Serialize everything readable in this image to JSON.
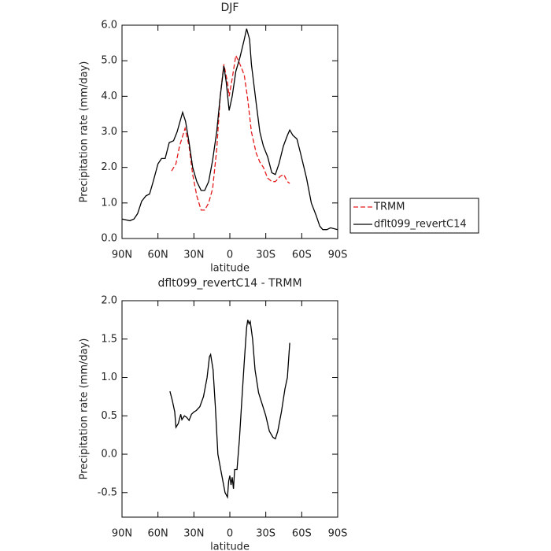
{
  "chart_data": [
    {
      "type": "line",
      "title": "DJF",
      "xlabel": "latitude",
      "ylabel": "Precipitation rate (mm/day)",
      "xlim": [
        90,
        -90
      ],
      "xticks": [
        {
          "value": 90,
          "label": "90N"
        },
        {
          "value": 60,
          "label": "60N"
        },
        {
          "value": 30,
          "label": "30N"
        },
        0,
        {
          "value": -30,
          "label": "30S"
        },
        {
          "value": -60,
          "label": "60S"
        },
        {
          "value": -90,
          "label": "90S"
        }
      ],
      "ylim": [
        0,
        6
      ],
      "yticks": [
        {
          "value": 0,
          "label": "0.0"
        },
        {
          "value": 1,
          "label": "1.0"
        },
        {
          "value": 2,
          "label": "2.0"
        },
        {
          "value": 3,
          "label": "3.0"
        },
        {
          "value": 4,
          "label": "4.0"
        },
        {
          "value": 5,
          "label": "5.0"
        },
        {
          "value": 6,
          "label": "6.0"
        }
      ],
      "legend": "right",
      "series": [
        {
          "name": "TRMM",
          "color": "#e41a1c",
          "dash": true,
          "x": [
            48.6,
            45,
            42,
            37.4,
            34,
            31,
            27.6,
            24,
            21,
            17.7,
            14.4,
            11,
            8,
            5,
            2,
            0.6,
            -2,
            -5,
            -8.5,
            -12,
            -15,
            -18,
            -22,
            -25,
            -28,
            -31.5,
            -35,
            -38,
            -42,
            -45,
            -48,
            -50
          ],
          "values": [
            1.9,
            2.1,
            2.6,
            3.1,
            2.6,
            1.8,
            1.2,
            0.8,
            0.8,
            1.0,
            1.4,
            2.5,
            4.0,
            4.9,
            4.4,
            4.0,
            4.5,
            5.15,
            4.9,
            4.6,
            3.9,
            3.0,
            2.4,
            2.15,
            2.0,
            1.7,
            1.6,
            1.6,
            1.75,
            1.8,
            1.6,
            1.55
          ]
        },
        {
          "name": "dflt099_revertC14",
          "color": "#000000",
          "dash": false,
          "x": [
            90,
            83.4,
            80,
            77,
            73.6,
            70,
            67,
            64,
            60,
            57,
            54,
            50.6,
            47,
            44,
            39.4,
            37,
            34,
            31,
            27.6,
            24,
            21,
            17.7,
            14.4,
            11,
            8,
            5,
            3,
            0.6,
            -2,
            -5,
            -8.5,
            -12,
            -14,
            -16.5,
            -18,
            -22,
            -25,
            -28,
            -31.5,
            -35,
            -38,
            -41,
            -44.7,
            -48,
            -50,
            -52.6,
            -56,
            -59,
            -64,
            -68,
            -72,
            -75,
            -77.5,
            -81,
            -84,
            -90
          ],
          "values": [
            0.55,
            0.5,
            0.55,
            0.7,
            1.05,
            1.2,
            1.25,
            1.6,
            2.1,
            2.25,
            2.25,
            2.7,
            2.75,
            3.0,
            3.55,
            3.3,
            2.7,
            2.0,
            1.6,
            1.35,
            1.35,
            1.6,
            2.2,
            3.0,
            4.0,
            4.85,
            4.4,
            3.6,
            4.0,
            4.7,
            5.1,
            5.6,
            5.9,
            5.6,
            4.9,
            3.8,
            3.0,
            2.6,
            2.3,
            1.85,
            1.8,
            2.1,
            2.6,
            2.9,
            3.05,
            2.9,
            2.8,
            2.4,
            1.7,
            1.0,
            0.65,
            0.35,
            0.25,
            0.25,
            0.3,
            0.25
          ]
        }
      ]
    },
    {
      "type": "line",
      "title": "dflt099_revertC14 - TRMM",
      "xlabel": "latitude",
      "ylabel": "Precipitation rate (mm/day)",
      "xlim": [
        90,
        -90
      ],
      "xticks": [
        {
          "value": 90,
          "label": "90N"
        },
        {
          "value": 60,
          "label": "60N"
        },
        {
          "value": 30,
          "label": "30N"
        },
        0,
        {
          "value": -30,
          "label": "30S"
        },
        {
          "value": -60,
          "label": "60S"
        },
        {
          "value": -90,
          "label": "90S"
        }
      ],
      "ylim": [
        -0.82,
        2
      ],
      "yticks": [
        -0.5,
        {
          "value": 0,
          "label": "0.0"
        },
        0.5,
        {
          "value": 1,
          "label": "1.0"
        },
        1.5,
        {
          "value": 2,
          "label": "2.0"
        }
      ],
      "color": "#000000",
      "x": [
        50,
        48,
        46,
        45,
        43,
        41,
        40,
        38,
        36,
        34,
        32,
        30,
        28,
        25,
        22,
        19,
        17,
        16,
        14,
        12,
        10,
        7,
        4,
        2,
        1,
        0,
        -1,
        -2,
        -3,
        -4,
        -6,
        -8,
        -10,
        -12,
        -14,
        -15,
        -16,
        -17,
        -19,
        -21,
        -24,
        -27,
        -30,
        -33,
        -36,
        -38,
        -40,
        -43,
        -46,
        -48,
        -50
      ],
      "values": [
        0.82,
        0.7,
        0.55,
        0.35,
        0.4,
        0.52,
        0.45,
        0.5,
        0.48,
        0.44,
        0.52,
        0.55,
        0.57,
        0.62,
        0.75,
        1.0,
        1.27,
        1.3,
        1.1,
        0.6,
        0.0,
        -0.25,
        -0.5,
        -0.56,
        -0.35,
        -0.28,
        -0.4,
        -0.3,
        -0.45,
        -0.2,
        -0.2,
        0.2,
        0.7,
        1.2,
        1.65,
        1.75,
        1.7,
        1.73,
        1.5,
        1.1,
        0.8,
        0.65,
        0.5,
        0.3,
        0.22,
        0.2,
        0.3,
        0.55,
        0.85,
        1.0,
        1.45
      ]
    }
  ]
}
